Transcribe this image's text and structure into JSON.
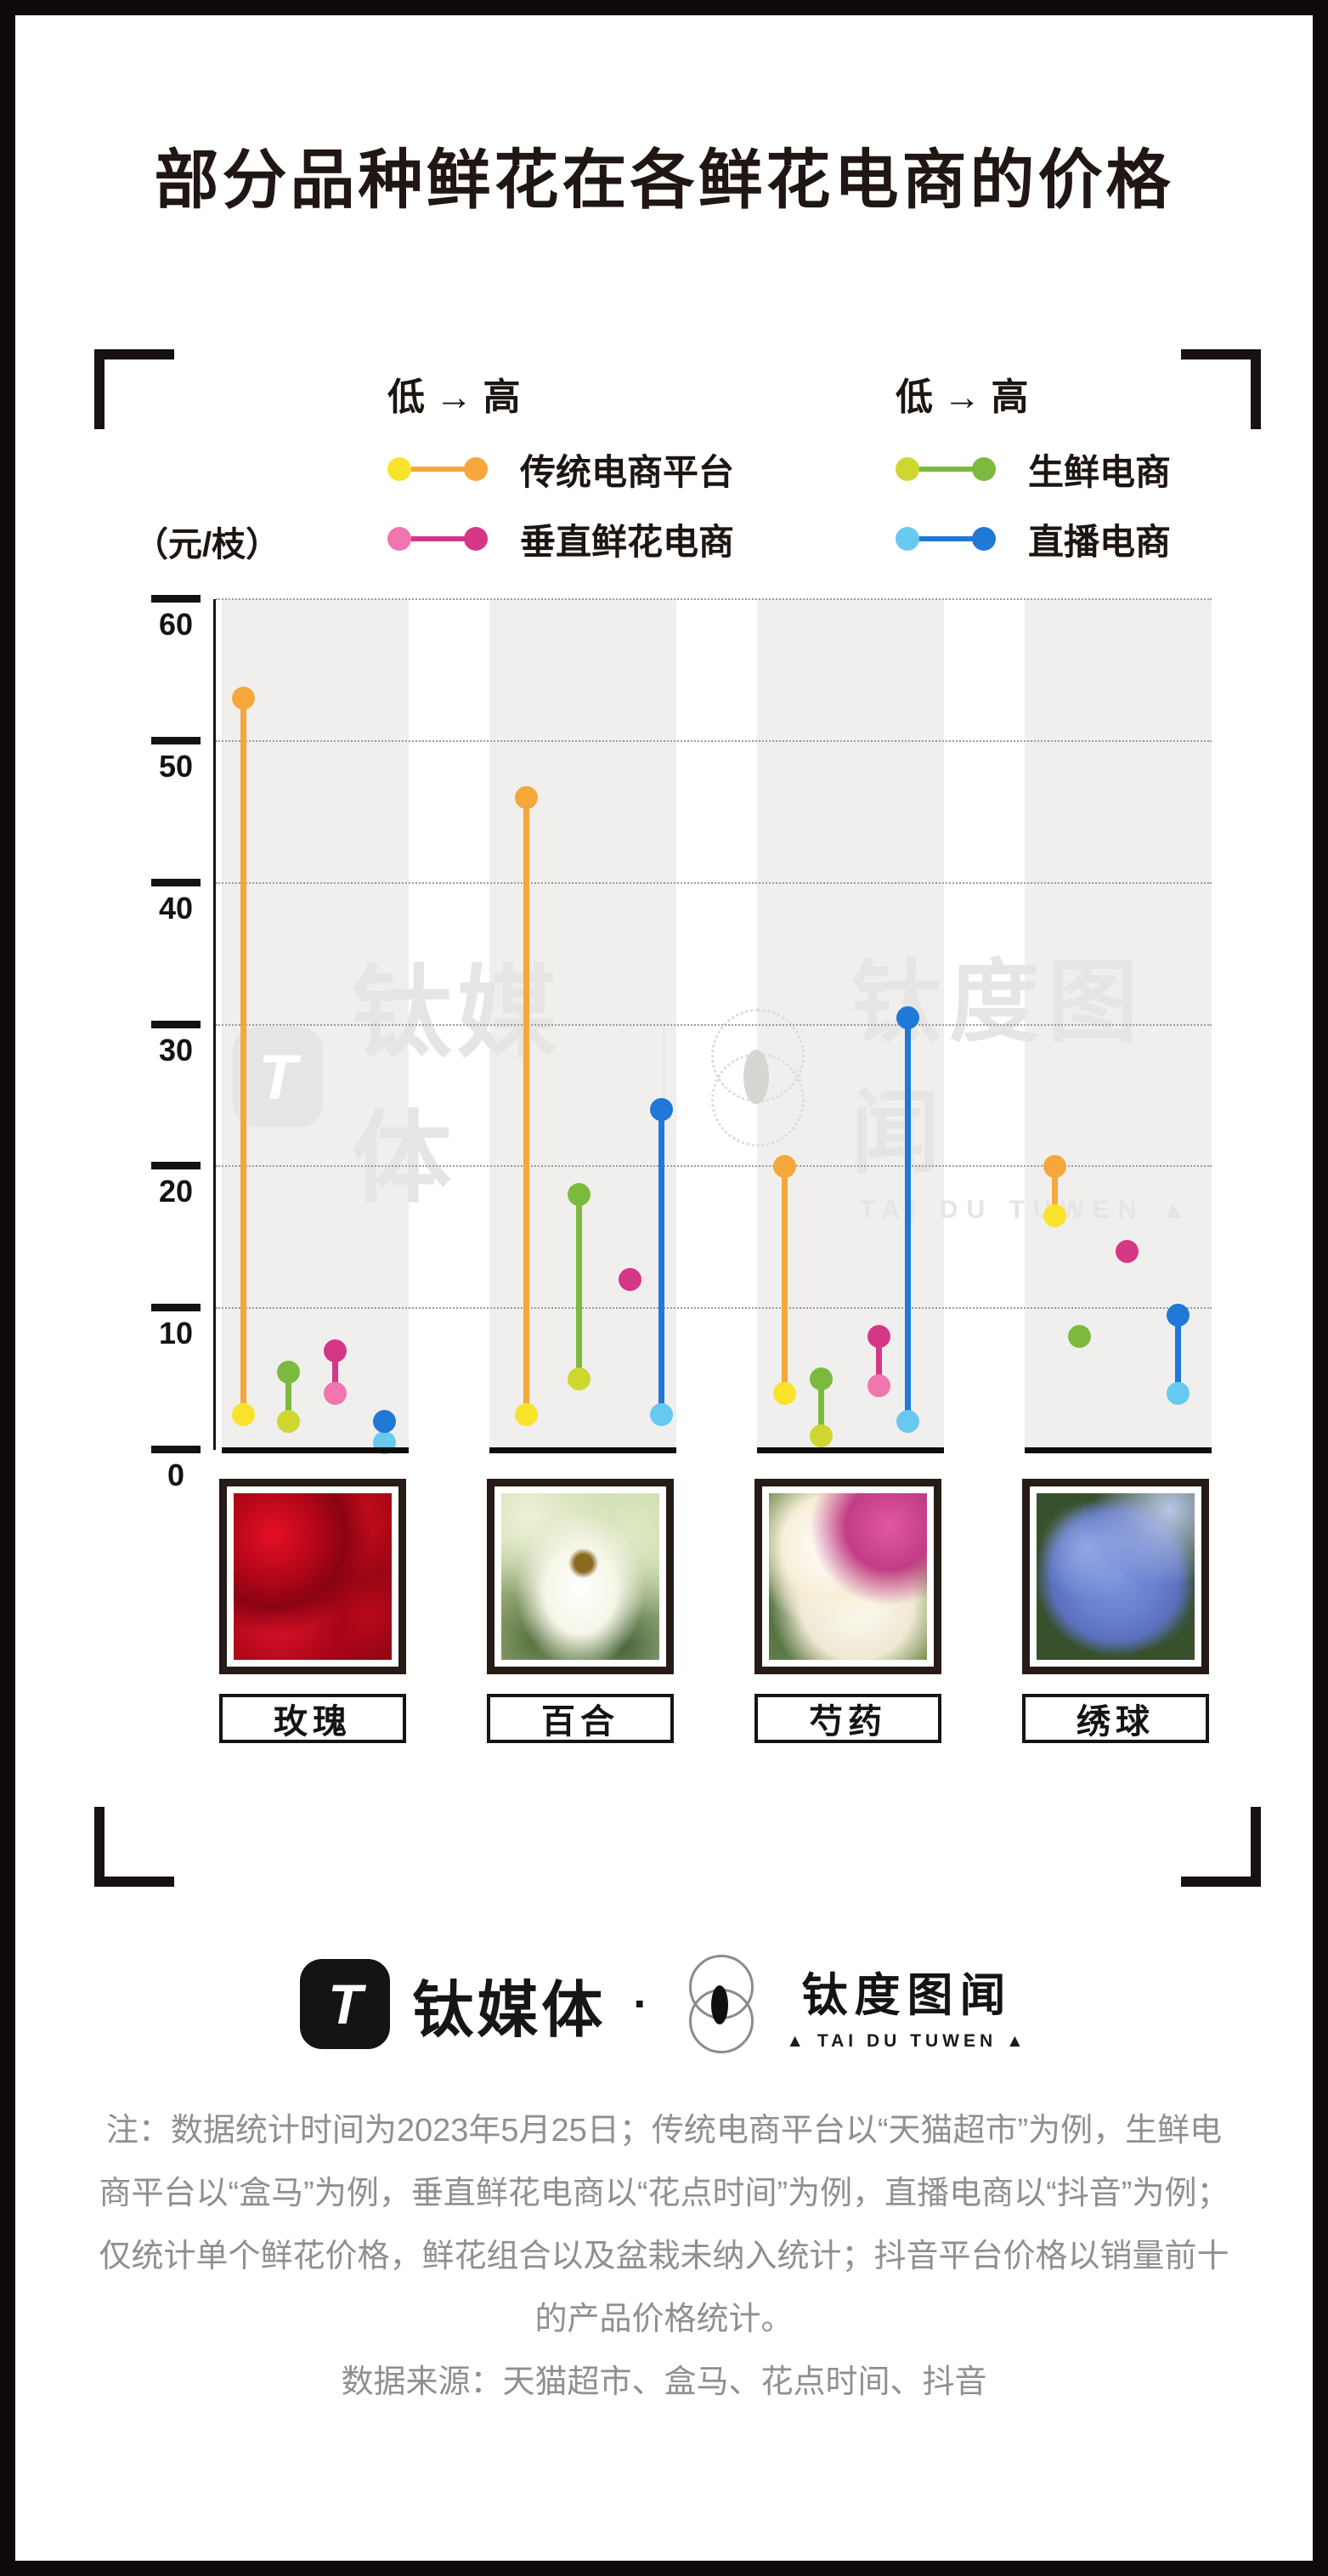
{
  "title": "部分品种鲜花在各鲜花电商的价格",
  "axis": {
    "unit": "（元/枝）"
  },
  "legend": {
    "range_label": "低 → 高"
  },
  "chart_data": {
    "type": "dumbbell",
    "title": "部分品种鲜花在各鲜花电商的价格",
    "ylabel": "（元/枝）",
    "ylim": [
      0,
      60
    ],
    "yticks": [
      0,
      10,
      20,
      30,
      40,
      50,
      60
    ],
    "grid": "dotted-horizontal",
    "legend_position": "top",
    "categories": [
      "玫瑰",
      "百合",
      "芍药",
      "绣球"
    ],
    "series": [
      {
        "name": "传统电商平台",
        "low_color": "#f9e32b",
        "high_color": "#f6a73c",
        "ranges": [
          [
            2.5,
            53
          ],
          [
            2.5,
            46
          ],
          [
            4,
            20
          ],
          [
            16.5,
            20
          ]
        ]
      },
      {
        "name": "生鲜电商",
        "low_color": "#cdd72f",
        "high_color": "#7cba3f",
        "ranges": [
          [
            2,
            5.5
          ],
          [
            5,
            18
          ],
          [
            1,
            5
          ],
          [
            8,
            8
          ]
        ]
      },
      {
        "name": "垂直鲜花电商",
        "low_color": "#f175af",
        "high_color": "#d53787",
        "ranges": [
          [
            4,
            7
          ],
          [
            12,
            12
          ],
          [
            4.5,
            8
          ],
          [
            14,
            14
          ]
        ]
      },
      {
        "name": "直播电商",
        "low_color": "#68c9f0",
        "high_color": "#2078d7",
        "ranges": [
          [
            0.5,
            2
          ],
          [
            2.5,
            24
          ],
          [
            2,
            30.5
          ],
          [
            4,
            9.5
          ]
        ]
      }
    ]
  },
  "flowers": [
    {
      "label": "玫瑰"
    },
    {
      "label": "百合"
    },
    {
      "label": "芍药"
    },
    {
      "label": "绣球"
    }
  ],
  "watermark": {
    "brand": "钛媒体",
    "product": "钛度图闻",
    "sub": "TAI DU TUWEN ▲",
    "logo_glyph": "T"
  },
  "footer": {
    "brand": "钛媒体",
    "separator": "·",
    "product": "钛度图闻",
    "sub": "▲ TAI DU TUWEN ▲",
    "logo_glyph": "T"
  },
  "notes": {
    "lines": [
      "注：数据统计时间为2023年5月25日；传统电商平台以“天猫超市”为例，生鲜电",
      "商平台以“盒马”为例，垂直鲜花电商以“花点时间”为例，直播电商以“抖音”为例；",
      "仅统计单个鲜花价格，鲜花组合以及盆栽未纳入统计；抖音平台价格以销量前十",
      "的产品价格统计。",
      "数据来源：天猫超市、盒马、花点时间、抖音"
    ]
  }
}
